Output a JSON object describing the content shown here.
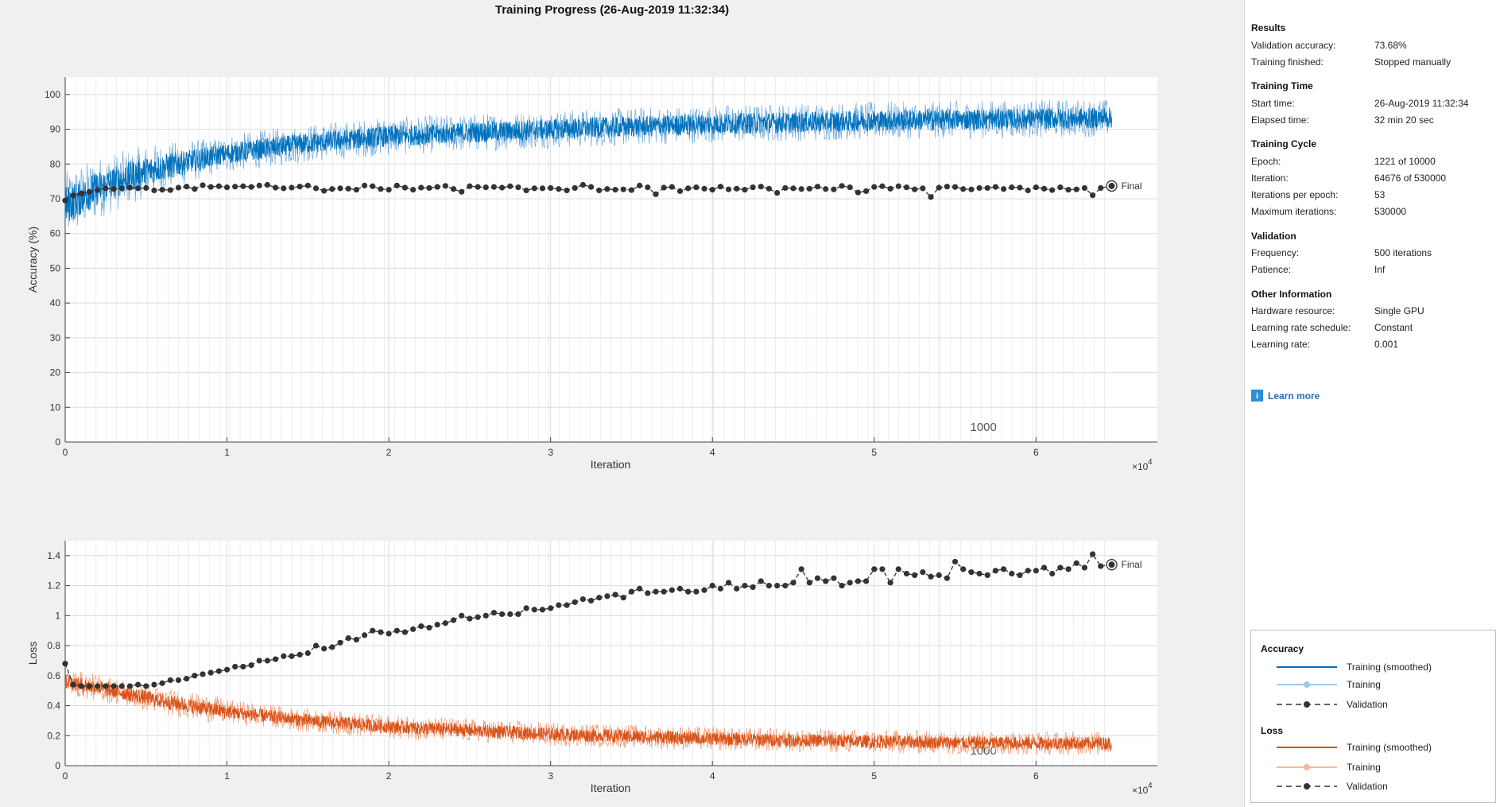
{
  "title": "Training Progress (26-Aug-2019 11:32:34)",
  "colors": {
    "training_acc": "#0072bd",
    "training_acc_light": "#6ea9dc",
    "training_loss": "#d95319",
    "training_loss_light": "#f09a74",
    "validation": "#333333",
    "grid": "#dcdcdc",
    "epoch_line": "#e2e2e2"
  },
  "epoch_marker_label": "1000",
  "final_label": "Final",
  "chart_data": [
    {
      "type": "line",
      "name": "accuracy",
      "ylabel": "Accuracy (%)",
      "xlabel": "Iteration",
      "x_exponent": "×10",
      "x_exponent_power": "4",
      "xlim": [
        0,
        67500
      ],
      "ylim": [
        0,
        105
      ],
      "xticks": [
        0,
        1,
        2,
        3,
        4,
        5,
        6
      ],
      "yticks": [
        0,
        10,
        20,
        30,
        40,
        50,
        60,
        70,
        80,
        90,
        100
      ],
      "final_iteration": 64676,
      "epoch_marker_iteration": 54000,
      "training_smoothed": {
        "x": [
          0,
          2000,
          5000,
          10000,
          15000,
          20000,
          30000,
          40000,
          50000,
          60000,
          64676
        ],
        "y": [
          68,
          73,
          78,
          83,
          86,
          88,
          90,
          91.5,
          92.5,
          93,
          93.3
        ]
      },
      "validation": {
        "x": [
          0,
          500,
          1000,
          1500,
          2000,
          2500,
          3000,
          3500,
          4000,
          4500,
          5000,
          5500,
          6000,
          6500,
          7000,
          7500,
          8000,
          8500,
          9000,
          9500,
          10000,
          10500,
          11000,
          11500,
          12000,
          12500,
          13000,
          13500,
          14000,
          14500,
          15000,
          15500,
          16000,
          16500,
          17000,
          17500,
          18000,
          18500,
          19000,
          19500,
          20000,
          20500,
          21000,
          21500,
          22000,
          22500,
          23000,
          23500,
          24000,
          24500,
          25000,
          25500,
          26000,
          26500,
          27000,
          27500,
          28000,
          28500,
          29000,
          29500,
          30000,
          30500,
          31000,
          31500,
          32000,
          32500,
          33000,
          33500,
          34000,
          34500,
          35000,
          35500,
          36000,
          36500,
          37000,
          37500,
          38000,
          38500,
          39000,
          39500,
          40000,
          40500,
          41000,
          41500,
          42000,
          42500,
          43000,
          43500,
          44000,
          44500,
          45000,
          45500,
          46000,
          46500,
          47000,
          47500,
          48000,
          48500,
          49000,
          49500,
          50000,
          50500,
          51000,
          51500,
          52000,
          52500,
          53000,
          53500,
          54000,
          54500,
          55000,
          55500,
          56000,
          56500,
          57000,
          57500,
          58000,
          58500,
          59000,
          59500,
          60000,
          60500,
          61000,
          61500,
          62000,
          62500,
          63000,
          63500,
          64000,
          64676
        ],
        "y": [
          69.5,
          71,
          71.5,
          72,
          72.5,
          73,
          72.8,
          73,
          73.2,
          73,
          73.1,
          72.4,
          72.6,
          72.5,
          73.2,
          73.5,
          72.8,
          73.9,
          73.4,
          73.6,
          73.3,
          73.5,
          73.6,
          73.4,
          73.8,
          74,
          73.2,
          73,
          73.2,
          73.5,
          73.8,
          73,
          72.3,
          72.8,
          73,
          72.9,
          72.6,
          73.8,
          73.6,
          72.8,
          72.6,
          73.8,
          73.2,
          72.6,
          73.2,
          73.1,
          73.4,
          73.7,
          72.8,
          72,
          73.6,
          73.4,
          73.3,
          73.4,
          73.2,
          73.6,
          73.3,
          72.4,
          73,
          73,
          73.1,
          72.8,
          72.4,
          73.1,
          74,
          73.4,
          72.4,
          72.8,
          72.6,
          72.7,
          72.5,
          73.8,
          73.3,
          71.3,
          73.2,
          73.4,
          72.2,
          73,
          73.3,
          72.9,
          72.6,
          73.5,
          72.7,
          72.9,
          72.6,
          73.3,
          73.5,
          72.9,
          71.7,
          73.1,
          73,
          72.8,
          72.9,
          73.5,
          72.8,
          72.7,
          73.7,
          73.3,
          71.8,
          72.2,
          73.4,
          73.6,
          72.9,
          73.6,
          73.3,
          72.7,
          73,
          70.5,
          73.2,
          73.5,
          73.4,
          72.8,
          72.7,
          73.1,
          73.1,
          73.4,
          72.8,
          73.3,
          73.2,
          72.4,
          73.3,
          72.9,
          72.5,
          73.3,
          72.6,
          72.7,
          73.1,
          71,
          73.1,
          73.68
        ]
      }
    },
    {
      "type": "line",
      "name": "loss",
      "ylabel": "Loss",
      "xlabel": "Iteration",
      "x_exponent": "×10",
      "x_exponent_power": "4",
      "xlim": [
        0,
        67500
      ],
      "ylim": [
        0,
        1.5
      ],
      "xticks": [
        0,
        1,
        2,
        3,
        4,
        5,
        6
      ],
      "yticks": [
        0,
        0.2,
        0.4,
        0.6,
        0.8,
        1,
        1.2,
        1.4
      ],
      "final_iteration": 64676,
      "epoch_marker_iteration": 54000,
      "training_smoothed": {
        "x": [
          0,
          3000,
          6000,
          10000,
          15000,
          20000,
          30000,
          40000,
          50000,
          60000,
          64676
        ],
        "y": [
          0.56,
          0.5,
          0.43,
          0.36,
          0.3,
          0.26,
          0.21,
          0.18,
          0.16,
          0.15,
          0.15
        ]
      },
      "validation": {
        "x": [
          0,
          500,
          1000,
          1500,
          2000,
          2500,
          3000,
          3500,
          4000,
          4500,
          5000,
          5500,
          6000,
          6500,
          7000,
          7500,
          8000,
          8500,
          9000,
          9500,
          10000,
          10500,
          11000,
          11500,
          12000,
          12500,
          13000,
          13500,
          14000,
          14500,
          15000,
          15500,
          16000,
          16500,
          17000,
          17500,
          18000,
          18500,
          19000,
          19500,
          20000,
          20500,
          21000,
          21500,
          22000,
          22500,
          23000,
          23500,
          24000,
          24500,
          25000,
          25500,
          26000,
          26500,
          27000,
          27500,
          28000,
          28500,
          29000,
          29500,
          30000,
          30500,
          31000,
          31500,
          32000,
          32500,
          33000,
          33500,
          34000,
          34500,
          35000,
          35500,
          36000,
          36500,
          37000,
          37500,
          38000,
          38500,
          39000,
          39500,
          40000,
          40500,
          41000,
          41500,
          42000,
          42500,
          43000,
          43500,
          44000,
          44500,
          45000,
          45500,
          46000,
          46500,
          47000,
          47500,
          48000,
          48500,
          49000,
          49500,
          50000,
          50500,
          51000,
          51500,
          52000,
          52500,
          53000,
          53500,
          54000,
          54500,
          55000,
          55500,
          56000,
          56500,
          57000,
          57500,
          58000,
          58500,
          59000,
          59500,
          60000,
          60500,
          61000,
          61500,
          62000,
          62500,
          63000,
          63500,
          64000,
          64676
        ],
        "y": [
          0.68,
          0.54,
          0.53,
          0.53,
          0.53,
          0.53,
          0.53,
          0.53,
          0.53,
          0.54,
          0.53,
          0.54,
          0.55,
          0.57,
          0.57,
          0.58,
          0.6,
          0.61,
          0.62,
          0.63,
          0.64,
          0.66,
          0.66,
          0.67,
          0.7,
          0.7,
          0.71,
          0.73,
          0.73,
          0.74,
          0.75,
          0.8,
          0.78,
          0.79,
          0.82,
          0.85,
          0.84,
          0.87,
          0.9,
          0.89,
          0.88,
          0.9,
          0.89,
          0.91,
          0.93,
          0.92,
          0.94,
          0.95,
          0.97,
          1.0,
          0.98,
          0.99,
          1.0,
          1.02,
          1.01,
          1.01,
          1.01,
          1.05,
          1.04,
          1.04,
          1.05,
          1.07,
          1.07,
          1.09,
          1.11,
          1.1,
          1.12,
          1.13,
          1.14,
          1.12,
          1.16,
          1.18,
          1.15,
          1.16,
          1.16,
          1.17,
          1.18,
          1.16,
          1.16,
          1.17,
          1.2,
          1.18,
          1.22,
          1.18,
          1.2,
          1.19,
          1.23,
          1.2,
          1.2,
          1.2,
          1.22,
          1.31,
          1.22,
          1.25,
          1.23,
          1.25,
          1.2,
          1.22,
          1.23,
          1.23,
          1.31,
          1.31,
          1.22,
          1.31,
          1.28,
          1.27,
          1.29,
          1.26,
          1.27,
          1.25,
          1.36,
          1.31,
          1.29,
          1.28,
          1.27,
          1.3,
          1.31,
          1.28,
          1.27,
          1.3,
          1.3,
          1.32,
          1.28,
          1.32,
          1.31,
          1.35,
          1.32,
          1.41,
          1.33,
          1.34
        ]
      }
    }
  ],
  "panel": {
    "results_h": "Results",
    "val_acc_l": "Validation accuracy:",
    "val_acc_v": "73.68%",
    "finished_l": "Training finished:",
    "finished_v": "Stopped manually",
    "time_h": "Training Time",
    "start_l": "Start time:",
    "start_v": "26-Aug-2019 11:32:34",
    "elapsed_l": "Elapsed time:",
    "elapsed_v": "32 min 20 sec",
    "cycle_h": "Training Cycle",
    "epoch_l": "Epoch:",
    "epoch_v": "1221 of 10000",
    "iter_l": "Iteration:",
    "iter_v": "64676 of 530000",
    "ipe_l": "Iterations per epoch:",
    "ipe_v": "53",
    "maxit_l": "Maximum iterations:",
    "maxit_v": "530000",
    "val_h": "Validation",
    "freq_l": "Frequency:",
    "freq_v": "500 iterations",
    "pat_l": "Patience:",
    "pat_v": "Inf",
    "other_h": "Other Information",
    "hw_l": "Hardware resource:",
    "hw_v": "Single GPU",
    "lrs_l": "Learning rate schedule:",
    "lrs_v": "Constant",
    "lr_l": "Learning rate:",
    "lr_v": "0.001",
    "learn_more": "Learn more",
    "info_icon": "info-icon"
  },
  "legend": {
    "acc_h": "Accuracy",
    "acc_smoothed": "Training (smoothed)",
    "acc_training": "Training",
    "acc_validation": "Validation",
    "loss_h": "Loss",
    "loss_smoothed": "Training (smoothed)",
    "loss_training": "Training",
    "loss_validation": "Validation"
  }
}
